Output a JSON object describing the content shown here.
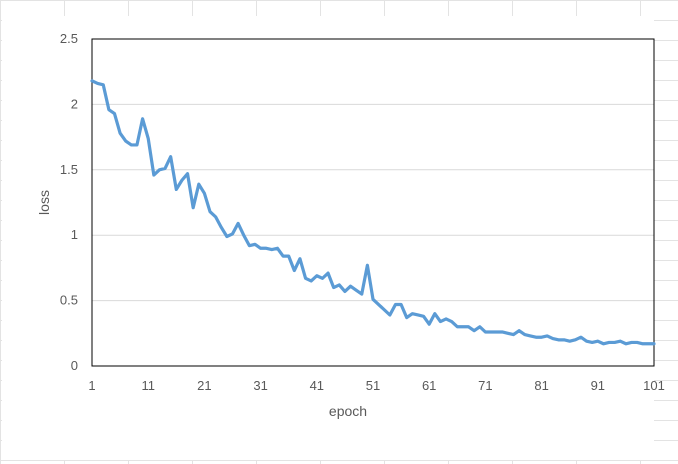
{
  "chart_data": {
    "type": "line",
    "title": "",
    "xlabel": "epoch",
    "ylabel": "loss",
    "xlim": [
      1,
      101
    ],
    "ylim": [
      0,
      2.5
    ],
    "grid": true,
    "legend": "none",
    "x_ticks": [
      "1",
      "11",
      "21",
      "31",
      "41",
      "51",
      "61",
      "71",
      "81",
      "91",
      "101"
    ],
    "y_ticks": [
      "0",
      "0.5",
      "1",
      "1.5",
      "2",
      "2.5"
    ],
    "colors": {
      "line": "#5b9bd5",
      "grid": "#d9d9d9",
      "frame": "#000000",
      "text": "#595959"
    },
    "series": [
      {
        "values": [
          2.18,
          2.16,
          2.15,
          1.96,
          1.93,
          1.78,
          1.72,
          1.69,
          1.69,
          1.89,
          1.74,
          1.46,
          1.5,
          1.51,
          1.6,
          1.35,
          1.42,
          1.47,
          1.21,
          1.39,
          1.32,
          1.18,
          1.14,
          1.06,
          0.99,
          1.01,
          1.09,
          1.0,
          0.92,
          0.93,
          0.9,
          0.9,
          0.89,
          0.9,
          0.84,
          0.84,
          0.73,
          0.82,
          0.67,
          0.65,
          0.69,
          0.67,
          0.71,
          0.6,
          0.62,
          0.57,
          0.61,
          0.58,
          0.55,
          0.77,
          0.51,
          0.47,
          0.43,
          0.39,
          0.47,
          0.47,
          0.37,
          0.4,
          0.39,
          0.38,
          0.32,
          0.4,
          0.34,
          0.36,
          0.34,
          0.3,
          0.3,
          0.3,
          0.27,
          0.3,
          0.26,
          0.26,
          0.26,
          0.26,
          0.25,
          0.24,
          0.27,
          0.24,
          0.23,
          0.22,
          0.22,
          0.23,
          0.21,
          0.2,
          0.2,
          0.19,
          0.2,
          0.22,
          0.19,
          0.18,
          0.19,
          0.17,
          0.18,
          0.18,
          0.19,
          0.17,
          0.18,
          0.18,
          0.17,
          0.17,
          0.17
        ]
      }
    ]
  }
}
